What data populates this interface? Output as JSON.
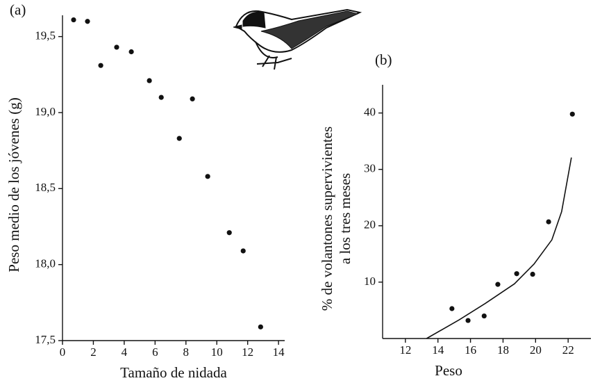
{
  "chart_data": [
    {
      "type": "scatter",
      "label": "(a)",
      "x_label": "Tamaño de nidada",
      "y_label": [
        "Peso medio de los jóvenes (g)"
      ],
      "x": [
        0.72,
        1.62,
        2.48,
        3.51,
        4.46,
        5.63,
        6.4,
        8.42,
        7.57,
        9.41,
        10.81,
        11.71,
        12.84
      ],
      "values": [
        19.61,
        19.6,
        19.31,
        19.43,
        19.4,
        19.21,
        19.1,
        19.09,
        18.83,
        18.58,
        18.21,
        18.09,
        17.59
      ],
      "color": "#111111",
      "xlim": [
        0,
        14.4
      ],
      "xticks": [
        0,
        2,
        4,
        6,
        8,
        10,
        12,
        14
      ],
      "ylim": [
        17.5,
        19.64
      ],
      "yticks": [
        {
          "value": 17.5,
          "label": "17,5"
        },
        {
          "value": 18.0,
          "label": "18,0"
        },
        {
          "value": 18.5,
          "label": "18,5"
        },
        {
          "value": 19.0,
          "label": "19,0"
        },
        {
          "value": 19.5,
          "label": "19,5"
        }
      ]
    },
    {
      "type": "scatter",
      "label": "(b)",
      "x_label": "Peso",
      "y_label": [
        "% de volantones supervivientes",
        "a los tres meses"
      ],
      "x": [
        14.86,
        15.85,
        16.84,
        17.68,
        18.84,
        19.82,
        20.8,
        22.26
      ],
      "values": [
        5.3,
        3.2,
        4.0,
        9.6,
        11.5,
        11.4,
        20.7,
        39.8
      ],
      "color": "#111111",
      "fit": {
        "x": [
          13.3,
          15.3,
          16.9,
          18.7,
          19.9,
          21.0,
          21.6,
          22.2
        ],
        "values": [
          0,
          3.3,
          6.2,
          9.7,
          13.2,
          17.5,
          22.5,
          32.1
        ]
      },
      "xlim": [
        10.6,
        23.4
      ],
      "xticks": [
        12,
        14,
        16,
        18,
        20,
        22
      ],
      "ylim": [
        0,
        45
      ],
      "yticks": [
        10,
        20,
        30,
        40
      ]
    }
  ]
}
